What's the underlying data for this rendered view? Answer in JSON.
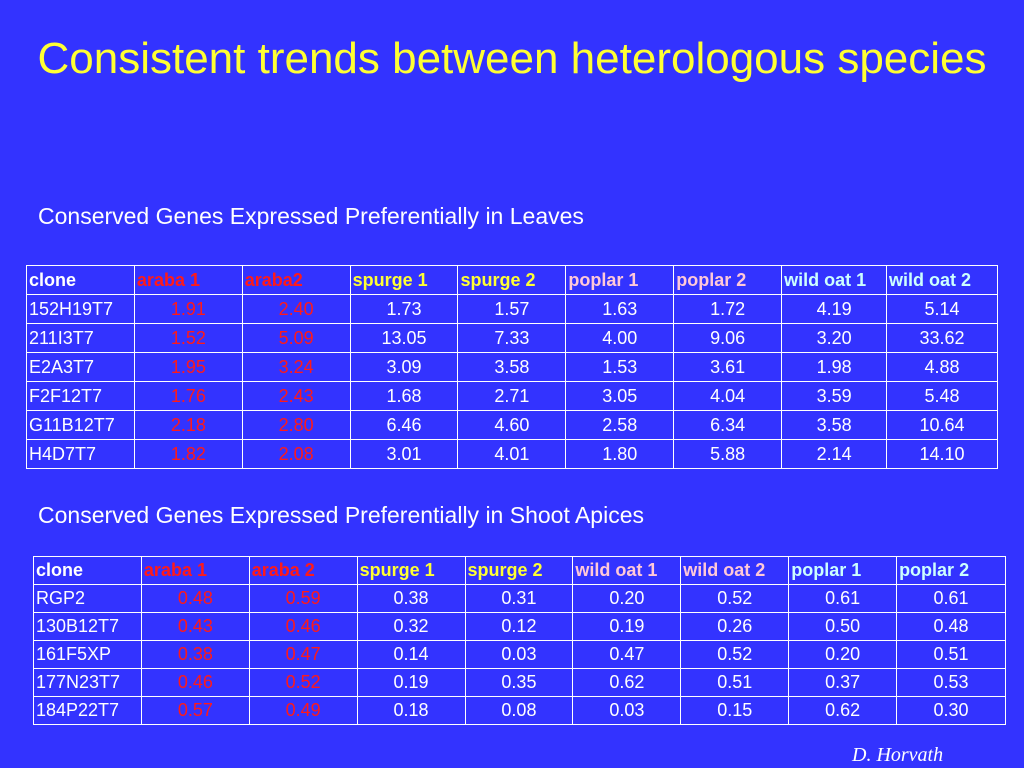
{
  "title": "Consistent trends between heterologous species",
  "table1": {
    "caption": "Conserved Genes Expressed Preferentially in Leaves",
    "headers": [
      "clone",
      "araba 1",
      "araba2",
      "spurge 1",
      "spurge 2",
      "poplar 1",
      "poplar 2",
      "wild oat 1",
      "wild oat 2"
    ],
    "rows": [
      [
        "152H19T7",
        "1.91",
        "2.40",
        "1.73",
        "1.57",
        "1.63",
        "1.72",
        "4.19",
        "5.14"
      ],
      [
        "211I3T7",
        "1.52",
        "5.09",
        "13.05",
        "7.33",
        "4.00",
        "9.06",
        "3.20",
        "33.62"
      ],
      [
        "E2A3T7",
        "1.95",
        "3.24",
        "3.09",
        "3.58",
        "1.53",
        "3.61",
        "1.98",
        "4.88"
      ],
      [
        "F2F12T7",
        "1.76",
        "2.43",
        "1.68",
        "2.71",
        "3.05",
        "4.04",
        "3.59",
        "5.48"
      ],
      [
        "G11B12T7",
        "2.18",
        "2.80",
        "6.46",
        "4.60",
        "2.58",
        "6.34",
        "3.58",
        "10.64"
      ],
      [
        "H4D7T7",
        "1.82",
        "2.08",
        "3.01",
        "4.01",
        "1.80",
        "5.88",
        "2.14",
        "14.10"
      ]
    ]
  },
  "table2": {
    "caption": "Conserved Genes Expressed Preferentially in Shoot Apices",
    "headers": [
      "clone",
      "araba 1",
      "araba 2",
      "spurge 1",
      "spurge 2",
      "wild oat 1",
      "wild oat 2",
      "poplar 1",
      "poplar 2"
    ],
    "rows": [
      [
        "RGP2",
        "0.48",
        "0.59",
        "0.38",
        "0.31",
        "0.20",
        "0.52",
        "0.61",
        "0.61"
      ],
      [
        "130B12T7",
        "0.43",
        "0.46",
        "0.32",
        "0.12",
        "0.19",
        "0.26",
        "0.50",
        "0.48"
      ],
      [
        "161F5XP",
        "0.38",
        "0.47",
        "0.14",
        "0.03",
        "0.47",
        "0.52",
        "0.20",
        "0.51"
      ],
      [
        "177N23T7",
        "0.46",
        "0.52",
        "0.19",
        "0.35",
        "0.62",
        "0.51",
        "0.37",
        "0.53"
      ],
      [
        "184P22T7",
        "0.57",
        "0.49",
        "0.18",
        "0.08",
        "0.03",
        "0.15",
        "0.62",
        "0.30"
      ]
    ]
  },
  "signature": "D. Horvath",
  "colors": {
    "background": "#3333ff",
    "title": "#ffff33",
    "arabidopsis": "#ff1a1a",
    "spurge": "#ffff33",
    "poplar_leaves": "#ffc8d8",
    "wild_oat_leaves": "#ccffff",
    "wild_oat_apices": "#ffc8d8",
    "poplar_apices": "#ccffff"
  }
}
